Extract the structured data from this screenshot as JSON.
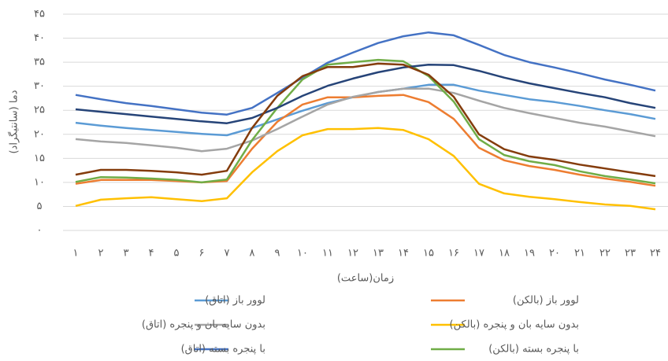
{
  "chart_data": {
    "type": "line",
    "y_label": "دما (سانتیگراد)",
    "x_label": "زمان(ساعت)",
    "categories": [
      "۱",
      "۲",
      "۳",
      "۴",
      "۵",
      "۶",
      "۷",
      "۸",
      "۹",
      "۱۰",
      "۱۱",
      "۱۲",
      "۱۳",
      "۱۴",
      "۱۵",
      "۱۶",
      "۱۷",
      "۱۸",
      "۱۹",
      "۲۰",
      "۲۱",
      "۲۲",
      "۲۳",
      "۲۴"
    ],
    "ylim": [
      0,
      45
    ],
    "yticks": [
      {
        "value": 0,
        "label": "۰"
      },
      {
        "value": 5,
        "label": "۵"
      },
      {
        "value": 10,
        "label": "۱۰"
      },
      {
        "value": 15,
        "label": "۱۵"
      },
      {
        "value": 20,
        "label": "۲۰"
      },
      {
        "value": 25,
        "label": "۲۵"
      },
      {
        "value": 30,
        "label": "۳۰"
      },
      {
        "value": 35,
        "label": "۳۵"
      },
      {
        "value": 40,
        "label": "۴۰"
      },
      {
        "value": 45,
        "label": "۴۵"
      }
    ],
    "grid": true,
    "series": [
      {
        "name": "لوور باز  (اتاق)",
        "color": "#5b9bd5",
        "values": [
          22.4,
          21.8,
          21.3,
          20.9,
          20.5,
          20.1,
          19.8,
          21.3,
          23.1,
          24.9,
          26.5,
          27.7,
          28.8,
          29.5,
          30.3,
          30.3,
          29.1,
          28.2,
          27.3,
          26.7,
          25.9,
          25.0,
          24.2,
          23.2
        ]
      },
      {
        "name": "لوور باز  (بالکن)",
        "color": "#ed7d31",
        "values": [
          9.7,
          10.5,
          10.5,
          10.5,
          10.3,
          10.0,
          10.3,
          17.0,
          22.6,
          26.2,
          27.7,
          27.7,
          28.0,
          28.2,
          26.7,
          23.2,
          17.2,
          14.6,
          13.4,
          12.6,
          11.6,
          10.8,
          10.1,
          9.3
        ]
      },
      {
        "name": "بدون سایه بان و پنجره (اتاق)",
        "color": "#a5a5a5",
        "values": [
          19.0,
          18.5,
          18.2,
          17.7,
          17.2,
          16.5,
          17.0,
          18.7,
          21.1,
          23.7,
          26.2,
          27.8,
          28.8,
          29.5,
          29.5,
          28.6,
          27.0,
          25.5,
          24.4,
          23.4,
          22.4,
          21.6,
          20.6,
          19.6
        ]
      },
      {
        "name": "بدون سایه بان و پنجره (بالکن)",
        "color": "#ffc000",
        "values": [
          5.1,
          6.4,
          6.7,
          6.9,
          6.5,
          6.1,
          6.7,
          12.1,
          16.5,
          19.8,
          21.1,
          21.1,
          21.3,
          20.9,
          19.0,
          15.5,
          9.7,
          7.7,
          7.0,
          6.5,
          5.9,
          5.4,
          5.1,
          4.4
        ]
      },
      {
        "name": "با پنجره بسته (اتاق)",
        "color": "#4472c4",
        "values": [
          28.2,
          27.3,
          26.5,
          25.9,
          25.2,
          24.5,
          24.1,
          25.5,
          28.6,
          31.8,
          34.9,
          37.0,
          39.0,
          40.4,
          41.2,
          40.6,
          38.6,
          36.5,
          35.0,
          33.9,
          32.7,
          31.4,
          30.3,
          29.1
        ]
      },
      {
        "name": "با پنجره بسته (بالکن)",
        "color": "#70ad47",
        "values": [
          10.1,
          11.1,
          11.0,
          10.8,
          10.5,
          10.0,
          10.6,
          18.8,
          25.5,
          31.4,
          34.5,
          35.0,
          35.5,
          35.2,
          32.1,
          26.8,
          19.0,
          15.7,
          14.4,
          13.6,
          12.3,
          11.3,
          10.6,
          9.8
        ]
      },
      {
        "color": "#264478",
        "values": [
          25.2,
          24.7,
          24.2,
          23.7,
          23.2,
          22.7,
          22.3,
          23.4,
          25.5,
          28.0,
          30.1,
          31.6,
          32.9,
          33.9,
          34.5,
          34.4,
          33.2,
          31.8,
          30.6,
          29.6,
          28.6,
          27.7,
          26.5,
          25.5
        ]
      },
      {
        "color": "#843c0c",
        "values": [
          11.6,
          12.6,
          12.6,
          12.4,
          12.1,
          11.6,
          12.4,
          21.3,
          28.0,
          32.1,
          34.0,
          34.0,
          34.7,
          34.5,
          32.4,
          27.8,
          20.0,
          16.9,
          15.4,
          14.7,
          13.7,
          12.9,
          12.1,
          11.3
        ]
      }
    ]
  }
}
